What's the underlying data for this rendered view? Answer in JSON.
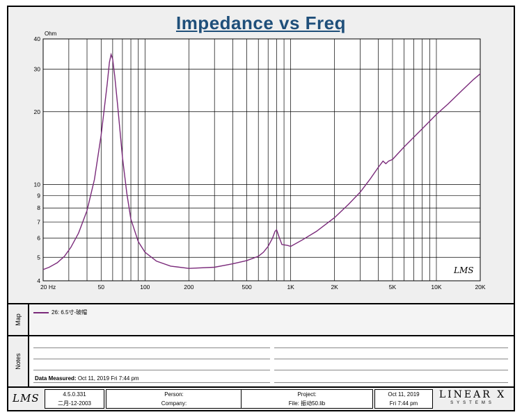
{
  "chart_data": {
    "type": "line",
    "title": "Impedance vs Freq",
    "ylabel": "Ohm",
    "xlabel": "",
    "x_scale": "log",
    "y_scale": "log",
    "xlim": [
      20,
      20000
    ],
    "ylim": [
      4,
      40
    ],
    "x_ticks": [
      {
        "value": 20,
        "label": "20 Hz"
      },
      {
        "value": 50,
        "label": "50"
      },
      {
        "value": 100,
        "label": "100"
      },
      {
        "value": 200,
        "label": "200"
      },
      {
        "value": 500,
        "label": "500"
      },
      {
        "value": 1000,
        "label": "1K"
      },
      {
        "value": 2000,
        "label": "2K"
      },
      {
        "value": 5000,
        "label": "5K"
      },
      {
        "value": 10000,
        "label": "10K"
      },
      {
        "value": 20000,
        "label": "20K"
      }
    ],
    "y_ticks": [
      {
        "value": 4,
        "label": "4"
      },
      {
        "value": 5,
        "label": "5"
      },
      {
        "value": 6,
        "label": "6"
      },
      {
        "value": 7,
        "label": "7"
      },
      {
        "value": 8,
        "label": "8"
      },
      {
        "value": 9,
        "label": "9"
      },
      {
        "value": 10,
        "label": "10"
      },
      {
        "value": 20,
        "label": "20"
      },
      {
        "value": 30,
        "label": "30"
      },
      {
        "value": 40,
        "label": "40"
      }
    ],
    "series": [
      {
        "name": "26: 6.5寸-玻帽",
        "color": "#7a2a7a",
        "points": [
          [
            20,
            4.45
          ],
          [
            22,
            4.55
          ],
          [
            25,
            4.75
          ],
          [
            28,
            5.05
          ],
          [
            31,
            5.5
          ],
          [
            35,
            6.3
          ],
          [
            40,
            7.8
          ],
          [
            45,
            10.5
          ],
          [
            50,
            16
          ],
          [
            55,
            26
          ],
          [
            57,
            32
          ],
          [
            58.5,
            34.5
          ],
          [
            60,
            33
          ],
          [
            62,
            28
          ],
          [
            65,
            21
          ],
          [
            70,
            13
          ],
          [
            75,
            9.2
          ],
          [
            80,
            7.2
          ],
          [
            90,
            5.8
          ],
          [
            100,
            5.25
          ],
          [
            120,
            4.82
          ],
          [
            150,
            4.6
          ],
          [
            200,
            4.5
          ],
          [
            300,
            4.55
          ],
          [
            400,
            4.7
          ],
          [
            500,
            4.85
          ],
          [
            600,
            5.05
          ],
          [
            650,
            5.25
          ],
          [
            700,
            5.55
          ],
          [
            750,
            6.0
          ],
          [
            780,
            6.4
          ],
          [
            800,
            6.5
          ],
          [
            830,
            6.1
          ],
          [
            870,
            5.65
          ],
          [
            950,
            5.6
          ],
          [
            1000,
            5.55
          ],
          [
            1200,
            5.9
          ],
          [
            1500,
            6.4
          ],
          [
            2000,
            7.3
          ],
          [
            2500,
            8.3
          ],
          [
            3000,
            9.3
          ],
          [
            3500,
            10.5
          ],
          [
            4000,
            11.8
          ],
          [
            4300,
            12.5
          ],
          [
            4500,
            12.2
          ],
          [
            4700,
            12.5
          ],
          [
            5000,
            12.7
          ],
          [
            6000,
            14.3
          ],
          [
            8000,
            17
          ],
          [
            10000,
            19.5
          ],
          [
            12000,
            21.5
          ],
          [
            15000,
            24.5
          ],
          [
            18000,
            27.2
          ],
          [
            20000,
            28.7
          ]
        ]
      }
    ]
  },
  "legend": {
    "panel_label": "Map",
    "entry": "26: 6.5寸-玻帽"
  },
  "notes": {
    "panel_label": "Notes",
    "data_measured_label": "Data Measured:",
    "data_measured_value": "Oct 11, 2019  Fri  7:44 pm"
  },
  "footer": {
    "logo": "LMS",
    "version": "4.5.0.331",
    "version_date": "二月-12-2003",
    "person_label": "Person:",
    "company_label": "Company:",
    "project_label": "Project:",
    "file_label": "File: 振动50.lib",
    "date": "Oct 11, 2019",
    "time": "Fri  7:44 pm",
    "brand_big": "LINEAR X",
    "brand_small": "SYSTEMS"
  },
  "plot_logo": "LMS"
}
